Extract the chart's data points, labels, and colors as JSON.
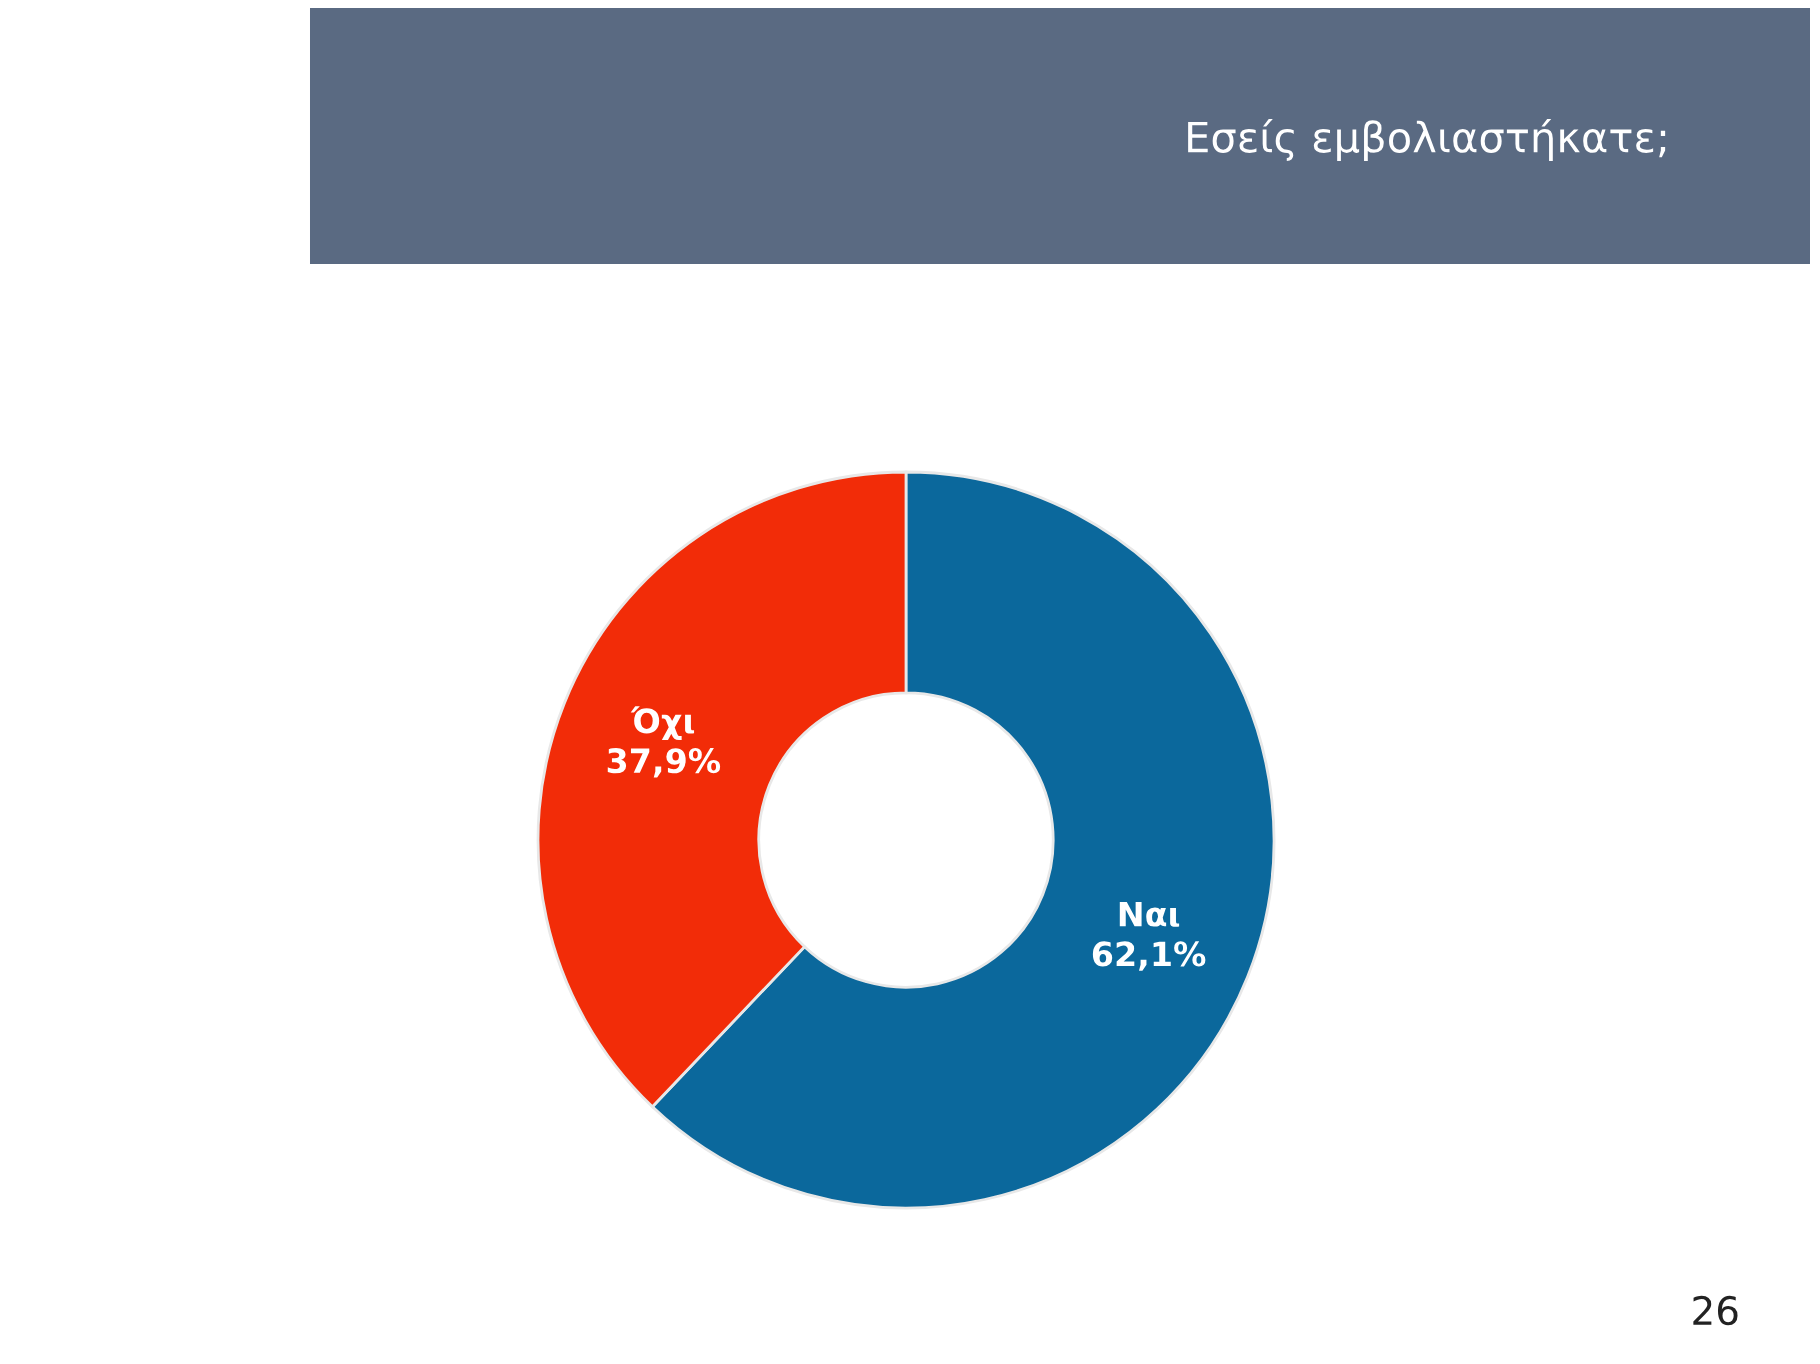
{
  "chart_data": {
    "type": "donut",
    "title": "Εσείς εμβολιαστήκατε;",
    "categories": [
      "Ναι",
      "Όχι"
    ],
    "values": [
      62.1,
      37.9
    ],
    "colors": [
      "#0b689c",
      "#f22c08"
    ],
    "value_labels": [
      "62,1%",
      "37,9%"
    ],
    "annotations": [
      "26"
    ],
    "legend": false
  }
}
